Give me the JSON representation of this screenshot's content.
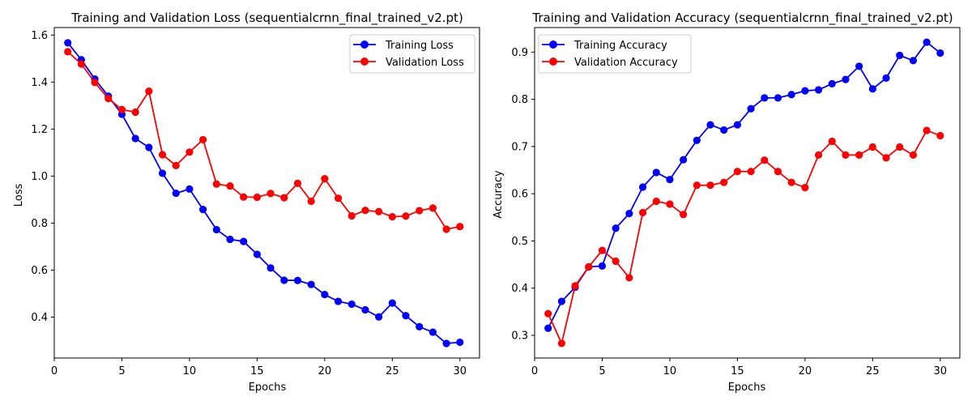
{
  "chart_data": [
    {
      "type": "line",
      "title": "Training and Validation Loss (sequentialcrnn_final_trained_v2.pt)",
      "xlabel": "Epochs",
      "ylabel": "Loss",
      "xlim": [
        0,
        31.45
      ],
      "ylim": [
        0.226,
        1.632
      ],
      "xticks": [
        0,
        5,
        10,
        15,
        20,
        25,
        30
      ],
      "yticks": [
        0.4,
        0.6,
        0.8,
        1.0,
        1.2,
        1.4,
        1.6
      ],
      "ytick_labels": [
        "0.4",
        "0.6",
        "0.8",
        "1.0",
        "1.2",
        "1.4",
        "1.6"
      ],
      "grid": false,
      "legend_position": "top-right",
      "x": [
        1,
        2,
        3,
        4,
        5,
        6,
        7,
        8,
        9,
        10,
        11,
        12,
        13,
        14,
        15,
        16,
        17,
        18,
        19,
        20,
        21,
        22,
        23,
        24,
        25,
        26,
        27,
        28,
        29,
        30
      ],
      "series": [
        {
          "name": "Training Loss",
          "color": "#0000ff",
          "values": [
            1.567,
            1.495,
            1.413,
            1.34,
            1.263,
            1.16,
            1.122,
            1.012,
            0.927,
            0.945,
            0.858,
            0.772,
            0.731,
            0.722,
            0.667,
            0.609,
            0.557,
            0.556,
            0.539,
            0.496,
            0.467,
            0.455,
            0.431,
            0.401,
            0.46,
            0.406,
            0.359,
            0.336,
            0.288,
            0.293
          ]
        },
        {
          "name": "Validation Loss",
          "color": "#ff0000",
          "values": [
            1.529,
            1.477,
            1.398,
            1.33,
            1.283,
            1.272,
            1.361,
            1.091,
            1.045,
            1.102,
            1.155,
            0.966,
            0.958,
            0.911,
            0.91,
            0.926,
            0.908,
            0.969,
            0.893,
            0.989,
            0.906,
            0.831,
            0.854,
            0.849,
            0.827,
            0.83,
            0.853,
            0.864,
            0.774,
            0.785
          ]
        }
      ]
    },
    {
      "type": "line",
      "title": "Training and Validation Accuracy (sequentialcrnn_final_trained_v2.pt)",
      "xlabel": "Epochs",
      "ylabel": "Accuracy",
      "xlim": [
        0,
        31.45
      ],
      "ylim": [
        0.252,
        0.952
      ],
      "xticks": [
        0,
        5,
        10,
        15,
        20,
        25,
        30
      ],
      "yticks": [
        0.3,
        0.4,
        0.5,
        0.6,
        0.7,
        0.8,
        0.9
      ],
      "ytick_labels": [
        "0.3",
        "0.4",
        "0.5",
        "0.6",
        "0.7",
        "0.8",
        "0.9"
      ],
      "grid": false,
      "legend_position": "top-left",
      "x": [
        1,
        2,
        3,
        4,
        5,
        6,
        7,
        8,
        9,
        10,
        11,
        12,
        13,
        14,
        15,
        16,
        17,
        18,
        19,
        20,
        21,
        22,
        23,
        24,
        25,
        26,
        27,
        28,
        29,
        30
      ],
      "series": [
        {
          "name": "Training Accuracy",
          "color": "#0000ff",
          "values": [
            0.315,
            0.372,
            0.402,
            0.445,
            0.447,
            0.527,
            0.558,
            0.614,
            0.645,
            0.63,
            0.672,
            0.713,
            0.746,
            0.735,
            0.746,
            0.78,
            0.803,
            0.803,
            0.81,
            0.818,
            0.82,
            0.833,
            0.842,
            0.87,
            0.822,
            0.845,
            0.893,
            0.882,
            0.921,
            0.898
          ]
        },
        {
          "name": "Validation Accuracy",
          "color": "#ff0000",
          "values": [
            0.346,
            0.283,
            0.405,
            0.445,
            0.48,
            0.457,
            0.422,
            0.56,
            0.584,
            0.578,
            0.556,
            0.618,
            0.618,
            0.624,
            0.647,
            0.647,
            0.671,
            0.647,
            0.624,
            0.613,
            0.682,
            0.711,
            0.682,
            0.682,
            0.699,
            0.676,
            0.699,
            0.682,
            0.734,
            0.723
          ]
        }
      ]
    }
  ]
}
